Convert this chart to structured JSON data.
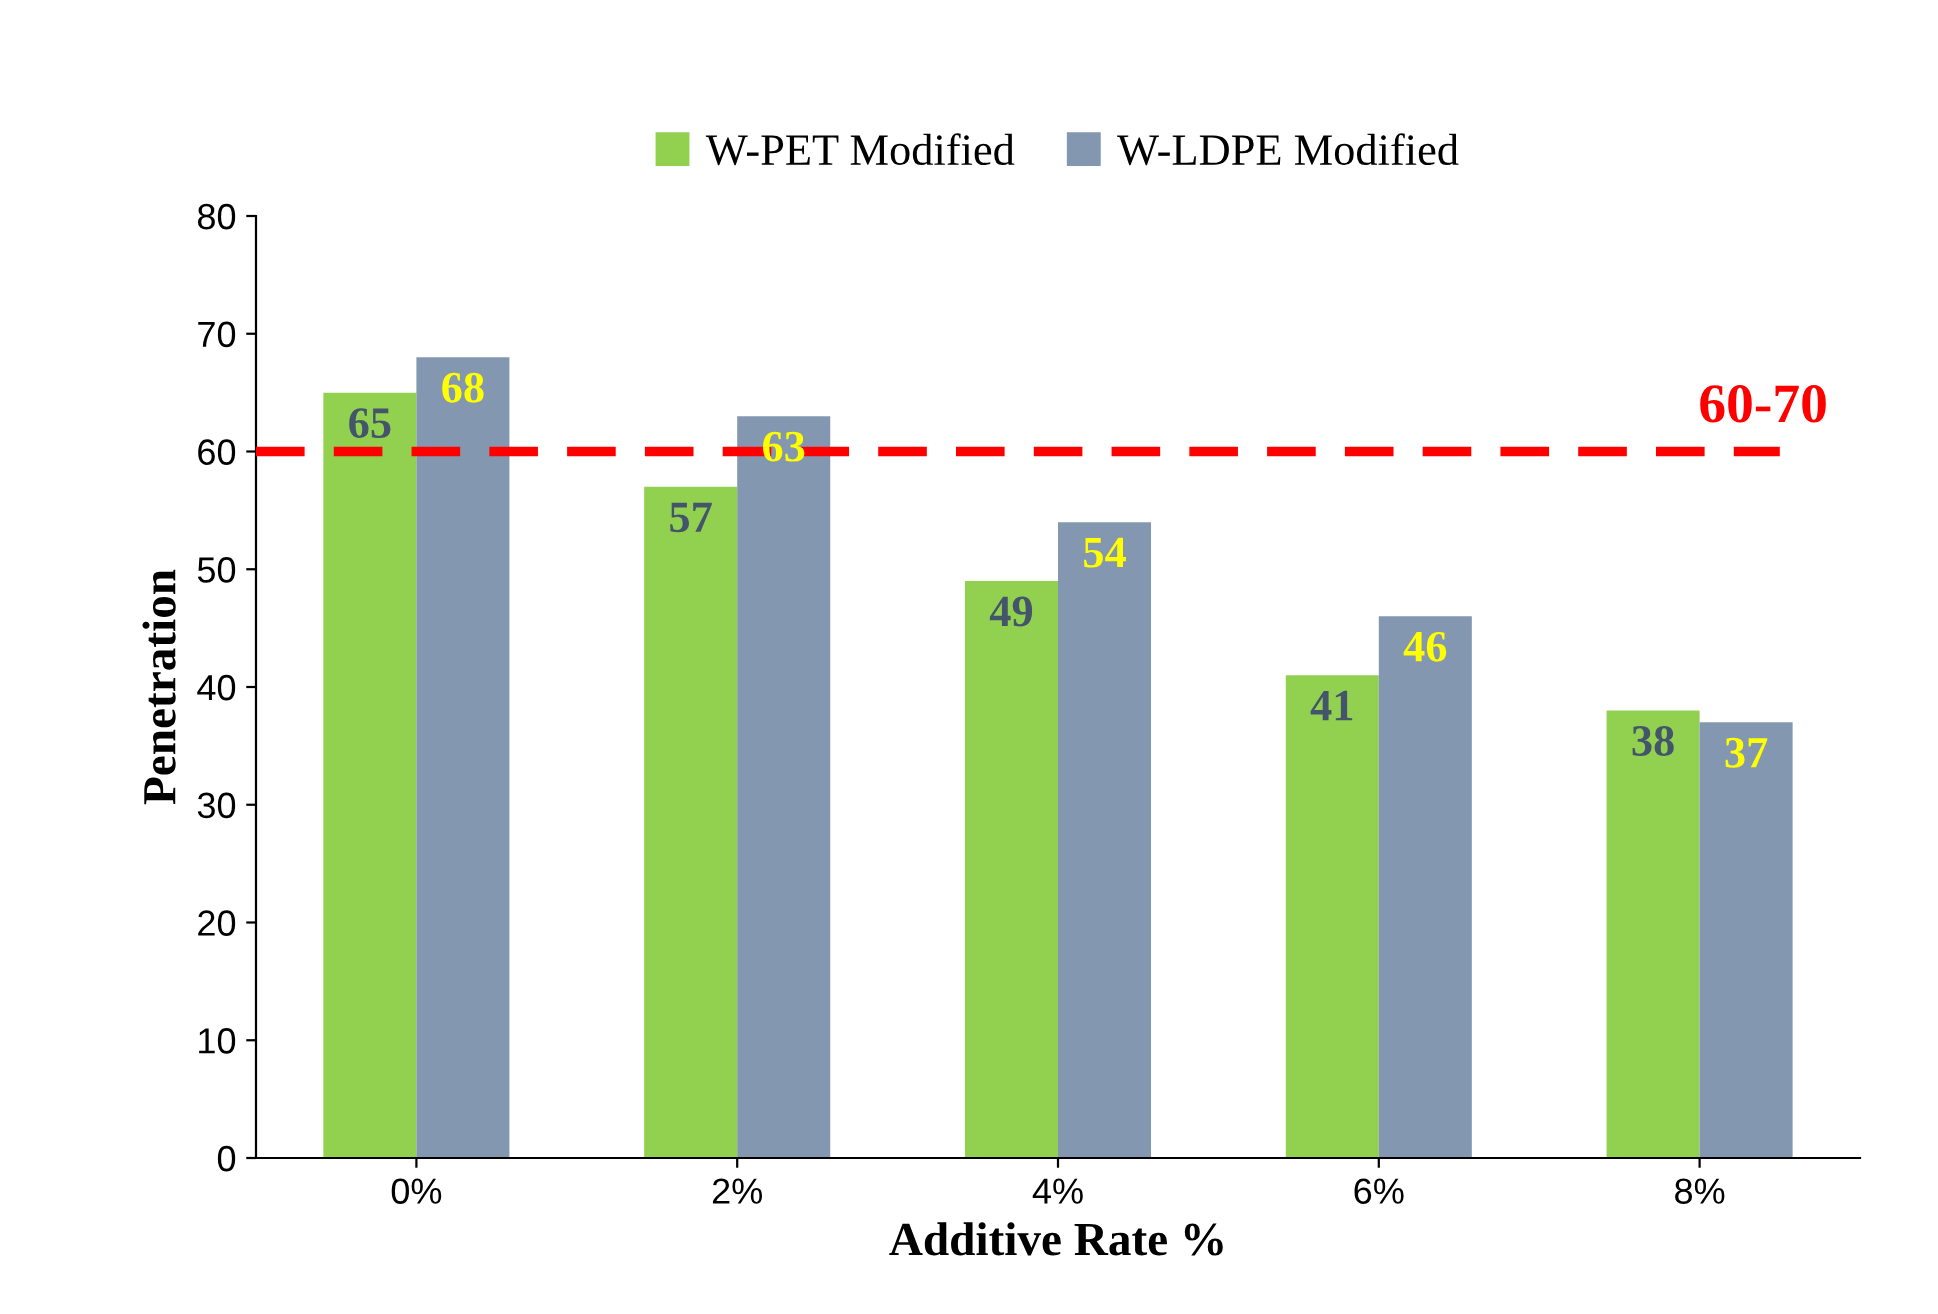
{
  "chart_data": {
    "type": "bar",
    "xlabel": "Additive Rate %",
    "ylabel": "Penetration",
    "categories": [
      "0%",
      "2%",
      "4%",
      "6%",
      "8%"
    ],
    "series": [
      {
        "name": "W-PET Modified",
        "color": "#92d050",
        "values": [
          65,
          57,
          49,
          41,
          38
        ]
      },
      {
        "name": "W-LDPE Modified",
        "color": "#8497b0",
        "values": [
          68,
          63,
          54,
          46,
          37
        ]
      }
    ],
    "ylim": [
      0,
      80
    ],
    "yticks": [
      0,
      10,
      20,
      30,
      40,
      50,
      60,
      70,
      80
    ],
    "ref_lines": [
      {
        "axis": "y",
        "value": 60,
        "label": "60-70",
        "color": "#ff0000",
        "line_style": "dashed"
      }
    ],
    "data_labels": true,
    "grid": false,
    "legend": "top"
  }
}
